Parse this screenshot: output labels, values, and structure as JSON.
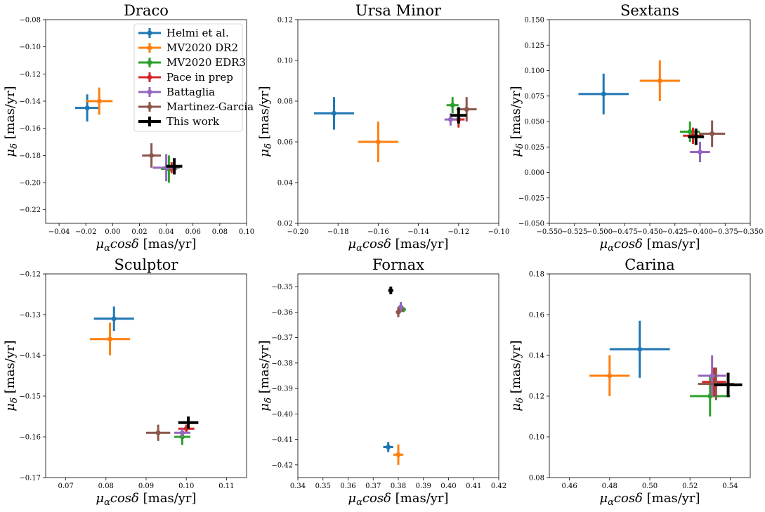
{
  "colors": {
    "Helmi et al.": "#1f77b4",
    "MV2020 DR2": "#ff7f0e",
    "MV2020 EDR3": "#2ca02c",
    "Pace in prep": "#d62728",
    "Battaglia": "#9467bd",
    "Martinez-Garcia": "#8c564b",
    "This work": "#000000"
  },
  "legend_entries": [
    "Helmi et al.",
    "MV2020 DR2",
    "MV2020 EDR3",
    "Pace in prep",
    "Battaglia",
    "Martinez-Garcia",
    "This work"
  ],
  "chart_data": [
    {
      "type": "scatter",
      "title": "Draco",
      "xlabel": "μ_α cosδ [mas/yr]",
      "ylabel": "μ_δ [mas/yr]",
      "xlim": [
        -0.05,
        0.1
      ],
      "ylim": [
        -0.23,
        -0.08
      ],
      "xticks": [
        -0.04,
        -0.02,
        0.0,
        0.02,
        0.04,
        0.06,
        0.08,
        0.1
      ],
      "xtick_labels": [
        "−0.04",
        "−0.02",
        "0.00",
        "0.02",
        "0.04",
        "0.06",
        "0.08",
        "0.10"
      ],
      "yticks": [
        -0.22,
        -0.2,
        -0.18,
        -0.16,
        -0.14,
        -0.12,
        -0.1,
        -0.08
      ],
      "ytick_labels": [
        "−0.22",
        "−0.20",
        "−0.18",
        "−0.16",
        "−0.14",
        "−0.12",
        "−0.10",
        "−0.08"
      ],
      "legend": "top-right",
      "series": [
        {
          "name": "Helmi et al.",
          "x": -0.019,
          "y": -0.145,
          "xerr": 0.009,
          "yerr": 0.01
        },
        {
          "name": "MV2020 DR2",
          "x": -0.01,
          "y": -0.14,
          "xerr": 0.01,
          "yerr": 0.01
        },
        {
          "name": "MV2020 EDR3",
          "x": 0.042,
          "y": -0.19,
          "xerr": 0.006,
          "yerr": 0.01
        },
        {
          "name": "Pace in prep",
          "x": 0.044,
          "y": -0.189,
          "xerr": 0.005,
          "yerr": 0.004
        },
        {
          "name": "Battaglia",
          "x": 0.04,
          "y": -0.189,
          "xerr": 0.01,
          "yerr": 0.01
        },
        {
          "name": "Martinez-Garcia",
          "x": 0.029,
          "y": -0.18,
          "xerr": 0.007,
          "yerr": 0.009
        },
        {
          "name": "This work",
          "x": 0.046,
          "y": -0.188,
          "xerr": 0.006,
          "yerr": 0.006
        }
      ]
    },
    {
      "type": "scatter",
      "title": "Ursa Minor",
      "xlabel": "μ_α cosδ [mas/yr]",
      "ylabel": "μ_δ [mas/yr]",
      "xlim": [
        -0.2,
        -0.1
      ],
      "ylim": [
        0.02,
        0.12
      ],
      "xticks": [
        -0.2,
        -0.18,
        -0.16,
        -0.14,
        -0.12,
        -0.1
      ],
      "xtick_labels": [
        "−0.20",
        "−0.18",
        "−0.16",
        "−0.14",
        "−0.12",
        "−0.10"
      ],
      "yticks": [
        0.02,
        0.04,
        0.06,
        0.08,
        0.1,
        0.12
      ],
      "ytick_labels": [
        "0.02",
        "0.04",
        "0.06",
        "0.08",
        "0.10",
        "0.12"
      ],
      "series": [
        {
          "name": "Helmi et al.",
          "x": -0.182,
          "y": 0.074,
          "xerr": 0.01,
          "yerr": 0.008
        },
        {
          "name": "MV2020 DR2",
          "x": -0.16,
          "y": 0.06,
          "xerr": 0.01,
          "yerr": 0.01
        },
        {
          "name": "MV2020 EDR3",
          "x": -0.123,
          "y": 0.078,
          "xerr": 0.003,
          "yerr": 0.004
        },
        {
          "name": "Pace in prep",
          "x": -0.12,
          "y": 0.071,
          "xerr": 0.003,
          "yerr": 0.004
        },
        {
          "name": "Battaglia",
          "x": -0.124,
          "y": 0.071,
          "xerr": 0.003,
          "yerr": 0.003
        },
        {
          "name": "Martinez-Garcia",
          "x": -0.116,
          "y": 0.076,
          "xerr": 0.005,
          "yerr": 0.006
        },
        {
          "name": "This work",
          "x": -0.12,
          "y": 0.073,
          "xerr": 0.004,
          "yerr": 0.004
        }
      ]
    },
    {
      "type": "scatter",
      "title": "Sextans",
      "xlabel": "μ_α cosδ [mas/yr]",
      "ylabel": "μ_δ [mas/yr]",
      "xlim": [
        -0.55,
        -0.35
      ],
      "ylim": [
        -0.05,
        0.15
      ],
      "xticks": [
        -0.55,
        -0.525,
        -0.5,
        -0.475,
        -0.45,
        -0.425,
        -0.4,
        -0.375,
        -0.35
      ],
      "xtick_labels": [
        "−0.550",
        "−0.525",
        "−0.500",
        "−0.475",
        "−0.450",
        "−0.425",
        "−0.400",
        "−0.375",
        "−0.350"
      ],
      "yticks": [
        -0.05,
        -0.025,
        0.0,
        0.025,
        0.05,
        0.075,
        0.1,
        0.125,
        0.15
      ],
      "ytick_labels": [
        "−0.050",
        "−0.025",
        "0.000",
        "0.025",
        "0.050",
        "0.075",
        "0.100",
        "0.125",
        "0.150"
      ],
      "series": [
        {
          "name": "Helmi et al.",
          "x": -0.496,
          "y": 0.077,
          "xerr": 0.025,
          "yerr": 0.02
        },
        {
          "name": "MV2020 DR2",
          "x": -0.44,
          "y": 0.09,
          "xerr": 0.02,
          "yerr": 0.02
        },
        {
          "name": "MV2020 EDR3",
          "x": -0.41,
          "y": 0.04,
          "xerr": 0.01,
          "yerr": 0.01
        },
        {
          "name": "Pace in prep",
          "x": -0.407,
          "y": 0.036,
          "xerr": 0.01,
          "yerr": 0.008
        },
        {
          "name": "Battaglia",
          "x": -0.4,
          "y": 0.02,
          "xerr": 0.01,
          "yerr": 0.01
        },
        {
          "name": "Martinez-Garcia",
          "x": -0.388,
          "y": 0.038,
          "xerr": 0.013,
          "yerr": 0.013
        },
        {
          "name": "This work",
          "x": -0.404,
          "y": 0.035,
          "xerr": 0.008,
          "yerr": 0.008
        }
      ]
    },
    {
      "type": "scatter",
      "title": "Sculptor",
      "xlabel": "μ_α cosδ [mas/yr]",
      "ylabel": "μ_δ [mas/yr]",
      "xlim": [
        0.065,
        0.115
      ],
      "ylim": [
        -0.17,
        -0.12
      ],
      "xticks": [
        0.07,
        0.08,
        0.09,
        0.1,
        0.11
      ],
      "xtick_labels": [
        "0.07",
        "0.08",
        "0.09",
        "0.10",
        "0.11"
      ],
      "yticks": [
        -0.17,
        -0.16,
        -0.15,
        -0.14,
        -0.13,
        -0.12
      ],
      "ytick_labels": [
        "−0.17",
        "−0.16",
        "−0.15",
        "−0.14",
        "−0.13",
        "−0.12"
      ],
      "series": [
        {
          "name": "Helmi et al.",
          "x": 0.082,
          "y": -0.131,
          "xerr": 0.005,
          "yerr": 0.003
        },
        {
          "name": "MV2020 DR2",
          "x": 0.081,
          "y": -0.136,
          "xerr": 0.005,
          "yerr": 0.004
        },
        {
          "name": "MV2020 EDR3",
          "x": 0.099,
          "y": -0.16,
          "xerr": 0.002,
          "yerr": 0.002
        },
        {
          "name": "Pace in prep",
          "x": 0.1,
          "y": -0.158,
          "xerr": 0.002,
          "yerr": 0.001
        },
        {
          "name": "Battaglia",
          "x": 0.099,
          "y": -0.159,
          "xerr": 0.002,
          "yerr": 0.001
        },
        {
          "name": "Martinez-Garcia",
          "x": 0.093,
          "y": -0.159,
          "xerr": 0.003,
          "yerr": 0.002
        },
        {
          "name": "This work",
          "x": 0.1005,
          "y": -0.1565,
          "xerr": 0.0025,
          "yerr": 0.0015
        }
      ]
    },
    {
      "type": "scatter",
      "title": "Fornax",
      "xlabel": "μ_α cosδ [mas/yr]",
      "ylabel": "μ_δ [mas/yr]",
      "xlim": [
        0.34,
        0.42
      ],
      "ylim": [
        -0.425,
        -0.345
      ],
      "xticks": [
        0.34,
        0.35,
        0.36,
        0.37,
        0.38,
        0.39,
        0.4,
        0.41,
        0.42
      ],
      "xtick_labels": [
        "0.34",
        "0.35",
        "0.36",
        "0.37",
        "0.38",
        "0.39",
        "0.40",
        "0.41",
        "0.42"
      ],
      "yticks": [
        -0.42,
        -0.41,
        -0.4,
        -0.39,
        -0.38,
        -0.37,
        -0.36,
        -0.35
      ],
      "ytick_labels": [
        "−0.42",
        "−0.41",
        "−0.40",
        "−0.39",
        "−0.38",
        "−0.37",
        "−0.36",
        "−0.35"
      ],
      "series": [
        {
          "name": "Helmi et al.",
          "x": 0.376,
          "y": -0.413,
          "xerr": 0.002,
          "yerr": 0.002
        },
        {
          "name": "MV2020 DR2",
          "x": 0.38,
          "y": -0.416,
          "xerr": 0.002,
          "yerr": 0.004
        },
        {
          "name": "MV2020 EDR3",
          "x": 0.382,
          "y": -0.359,
          "xerr": 0.001,
          "yerr": 0.001
        },
        {
          "name": "Pace in prep",
          "x": 0.381,
          "y": -0.359,
          "xerr": 0.001,
          "yerr": 0.001
        },
        {
          "name": "Battaglia",
          "x": 0.381,
          "y": -0.358,
          "xerr": 0.001,
          "yerr": 0.002
        },
        {
          "name": "Martinez-Garcia",
          "x": 0.38,
          "y": -0.36,
          "xerr": 0.001,
          "yerr": 0.002
        },
        {
          "name": "This work",
          "x": 0.377,
          "y": -0.3515,
          "xerr": 0.001,
          "yerr": 0.0015
        }
      ]
    },
    {
      "type": "scatter",
      "title": "Carina",
      "xlabel": "μ_α cosδ [mas/yr]",
      "ylabel": "μ_δ [mas/yr]",
      "xlim": [
        0.45,
        0.55
      ],
      "ylim": [
        0.08,
        0.18
      ],
      "xticks": [
        0.46,
        0.48,
        0.5,
        0.52,
        0.54
      ],
      "xtick_labels": [
        "0.46",
        "0.48",
        "0.50",
        "0.52",
        "0.54"
      ],
      "yticks": [
        0.08,
        0.1,
        0.12,
        0.14,
        0.16,
        0.18
      ],
      "ytick_labels": [
        "0.08",
        "0.10",
        "0.12",
        "0.14",
        "0.16",
        "0.18"
      ],
      "series": [
        {
          "name": "Helmi et al.",
          "x": 0.495,
          "y": 0.143,
          "xerr": 0.015,
          "yerr": 0.014
        },
        {
          "name": "MV2020 DR2",
          "x": 0.48,
          "y": 0.13,
          "xerr": 0.01,
          "yerr": 0.01
        },
        {
          "name": "MV2020 EDR3",
          "x": 0.53,
          "y": 0.12,
          "xerr": 0.01,
          "yerr": 0.01
        },
        {
          "name": "Pace in prep",
          "x": 0.532,
          "y": 0.127,
          "xerr": 0.006,
          "yerr": 0.007
        },
        {
          "name": "Battaglia",
          "x": 0.531,
          "y": 0.13,
          "xerr": 0.007,
          "yerr": 0.01
        },
        {
          "name": "Martinez-Garcia",
          "x": 0.533,
          "y": 0.126,
          "xerr": 0.009,
          "yerr": 0.008
        },
        {
          "name": "This work",
          "x": 0.539,
          "y": 0.1255,
          "xerr": 0.007,
          "yerr": 0.006
        }
      ]
    }
  ]
}
